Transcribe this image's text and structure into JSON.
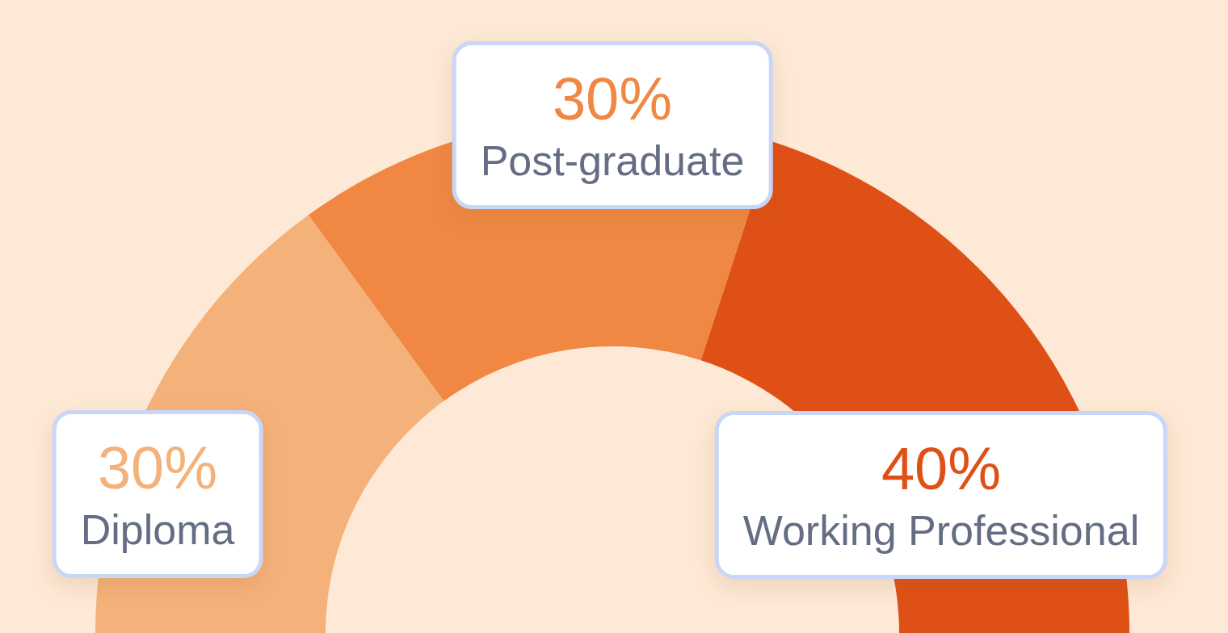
{
  "chart_data": {
    "type": "donut",
    "categories": [
      "Diploma",
      "Post-graduate",
      "Working Professional"
    ],
    "values": [
      30,
      30,
      40
    ],
    "colors": [
      "#f4b27a",
      "#f08844",
      "#df5016"
    ],
    "value_labels": [
      "30%",
      "30%",
      "40%"
    ]
  }
}
